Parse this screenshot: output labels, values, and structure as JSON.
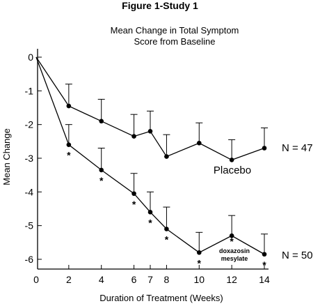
{
  "chart_data": {
    "type": "line",
    "figure_title": "Figure 1-Study 1",
    "title_line1": "Mean Change in Total Symptom",
    "title_line2": "Score from Baseline",
    "xlabel": "Duration of Treatment (Weeks)",
    "ylabel": "Mean Change",
    "xlim": [
      0,
      14
    ],
    "ylim": [
      -6.2,
      0.2
    ],
    "x_ticks": [
      0,
      2,
      4,
      6,
      7,
      8,
      10,
      12,
      14
    ],
    "y_ticks": [
      0,
      -1,
      -2,
      -3,
      -4,
      -5,
      -6
    ],
    "series": [
      {
        "name": "Placebo",
        "n_label": "N = 47",
        "x": [
          0,
          2,
          4,
          6,
          7,
          8,
          10,
          12,
          14
        ],
        "y": [
          0,
          -1.45,
          -1.9,
          -2.35,
          -2.2,
          -2.95,
          -2.55,
          -3.05,
          -2.7
        ],
        "err": [
          0,
          0.65,
          0.65,
          0.65,
          0.6,
          0.65,
          0.6,
          0.6,
          0.6
        ]
      },
      {
        "name": "doxazosin mesylate",
        "name_line1": "doxazosin",
        "name_line2": "mesylate",
        "n_label": "N = 50",
        "x": [
          0,
          2,
          4,
          6,
          7,
          8,
          10,
          12,
          14
        ],
        "y": [
          0,
          -2.6,
          -3.35,
          -4.05,
          -4.6,
          -5.1,
          -5.8,
          -5.3,
          -5.85
        ],
        "err": [
          0,
          0.6,
          0.65,
          0.6,
          0.6,
          0.65,
          0.6,
          0.6,
          0.6
        ],
        "significant": [
          false,
          true,
          true,
          true,
          true,
          true,
          true,
          true,
          true
        ]
      }
    ],
    "significance_marker": "*"
  }
}
